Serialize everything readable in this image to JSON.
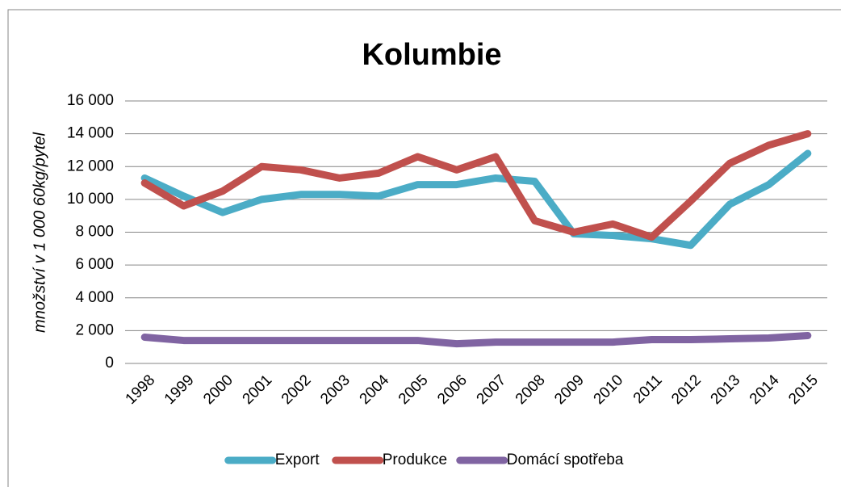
{
  "chart_data": {
    "type": "line",
    "title": "Kolumbie",
    "y_label": "množství v 1 000 60kg/pytel",
    "categories": [
      "1998",
      "1999",
      "2000",
      "2001",
      "2002",
      "2003",
      "2004",
      "2005",
      "2006",
      "2007",
      "2008",
      "2009",
      "2010",
      "2011",
      "2012",
      "2013",
      "2014",
      "2015"
    ],
    "series": [
      {
        "name": "Export",
        "color": "#4bacc6",
        "values": [
          11300,
          10200,
          9200,
          10000,
          10300,
          10300,
          10200,
          10900,
          10900,
          11300,
          11100,
          7900,
          7800,
          7600,
          7200,
          9700,
          10900,
          12800
        ]
      },
      {
        "name": "Produkce",
        "color": "#c0504d",
        "values": [
          11000,
          9600,
          10500,
          12000,
          11800,
          11300,
          11600,
          12600,
          11800,
          12600,
          8700,
          8000,
          8500,
          7700,
          9900,
          12200,
          13300,
          14000
        ]
      },
      {
        "name": "Domácí spotřeba",
        "color": "#8064a2",
        "values": [
          1600,
          1400,
          1400,
          1400,
          1400,
          1400,
          1400,
          1400,
          1200,
          1300,
          1300,
          1300,
          1300,
          1450,
          1450,
          1500,
          1550,
          1700
        ]
      }
    ],
    "ylim": [
      0,
      16000
    ],
    "yticks": [
      0,
      {
        "value": 2000,
        "label": "2 000"
      },
      {
        "value": 4000,
        "label": "4 000"
      },
      {
        "value": 6000,
        "label": "6 000"
      },
      {
        "value": 8000,
        "label": "8 000"
      },
      {
        "value": 10000,
        "label": "10 000"
      },
      {
        "value": 12000,
        "label": "12 000"
      },
      {
        "value": 14000,
        "label": "14 000"
      },
      {
        "value": 16000,
        "label": "16 000"
      }
    ],
    "grid": true,
    "legend": "bottom"
  }
}
